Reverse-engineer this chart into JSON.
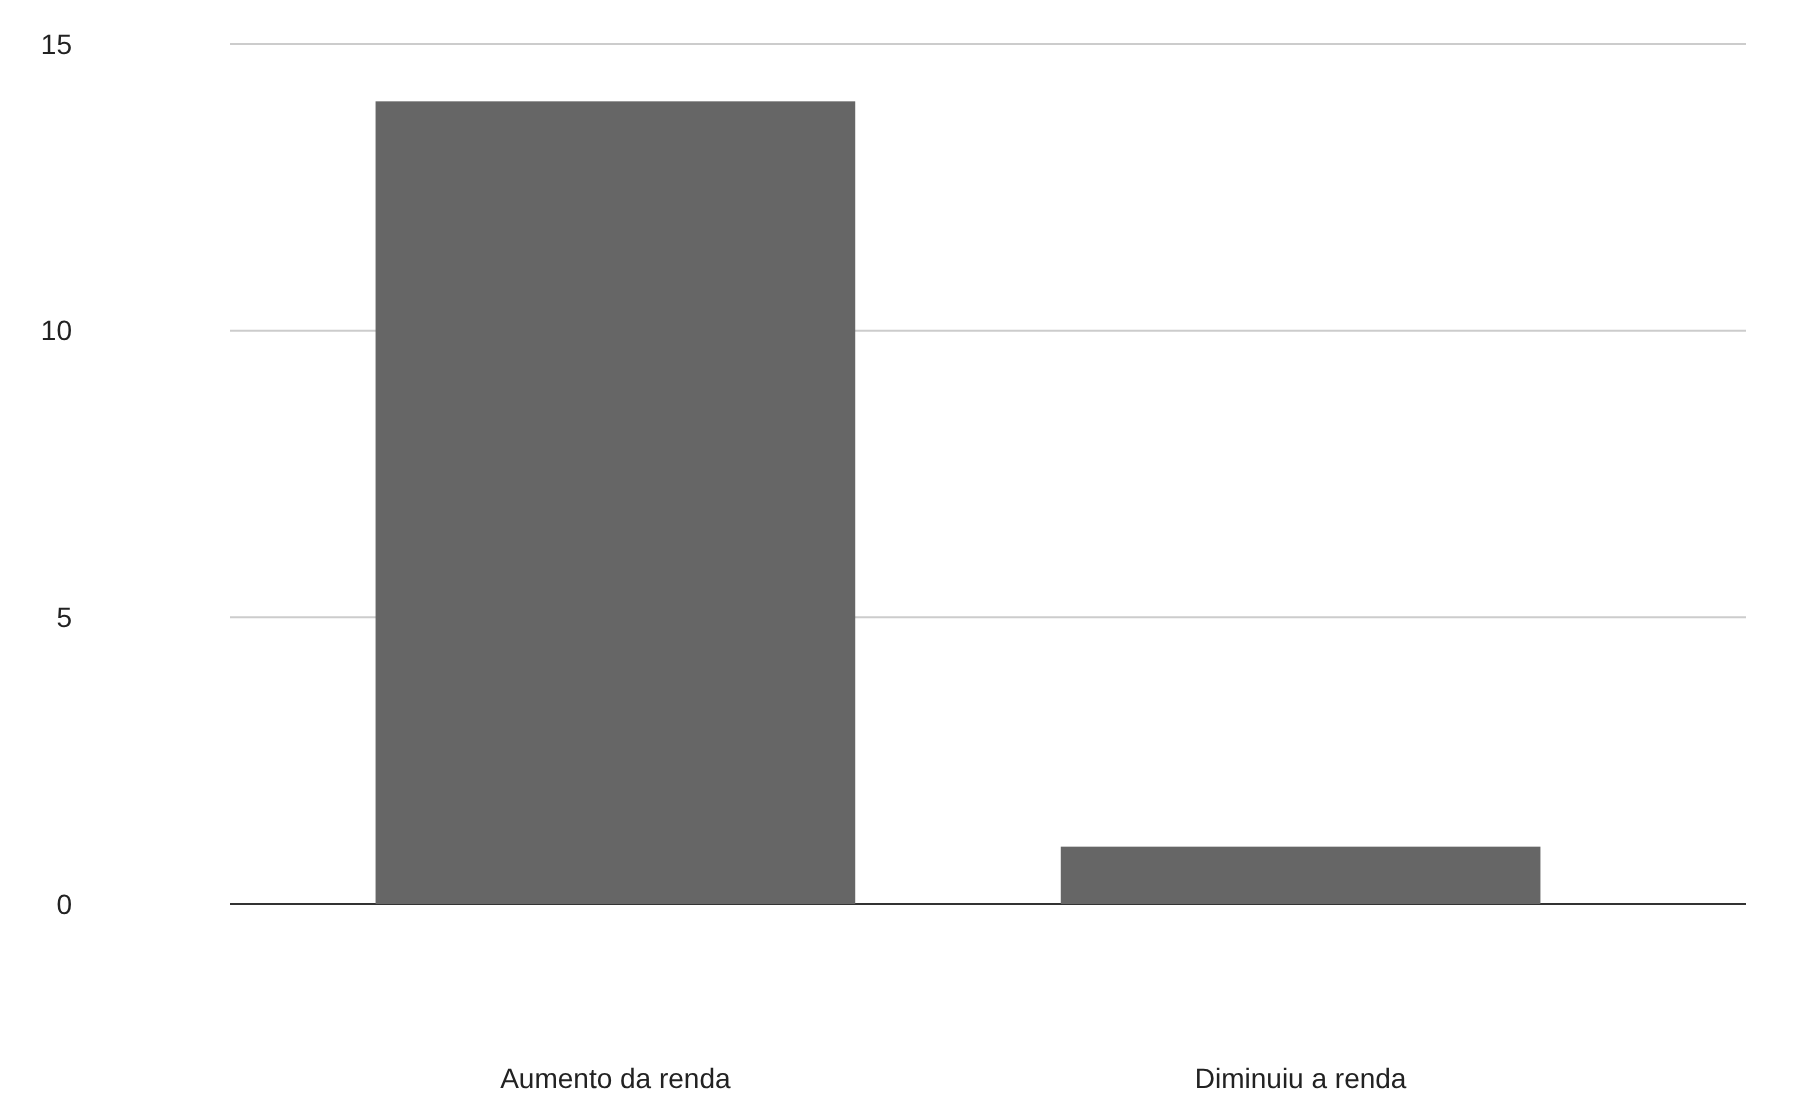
{
  "chart_data": {
    "type": "bar",
    "categories": [
      "Aumento da renda",
      "Diminuiu a renda"
    ],
    "values": [
      14,
      1
    ],
    "color": "#666666",
    "ylim": [
      0,
      15
    ],
    "yticks": [
      0,
      5,
      10,
      15
    ],
    "grid": "y"
  }
}
